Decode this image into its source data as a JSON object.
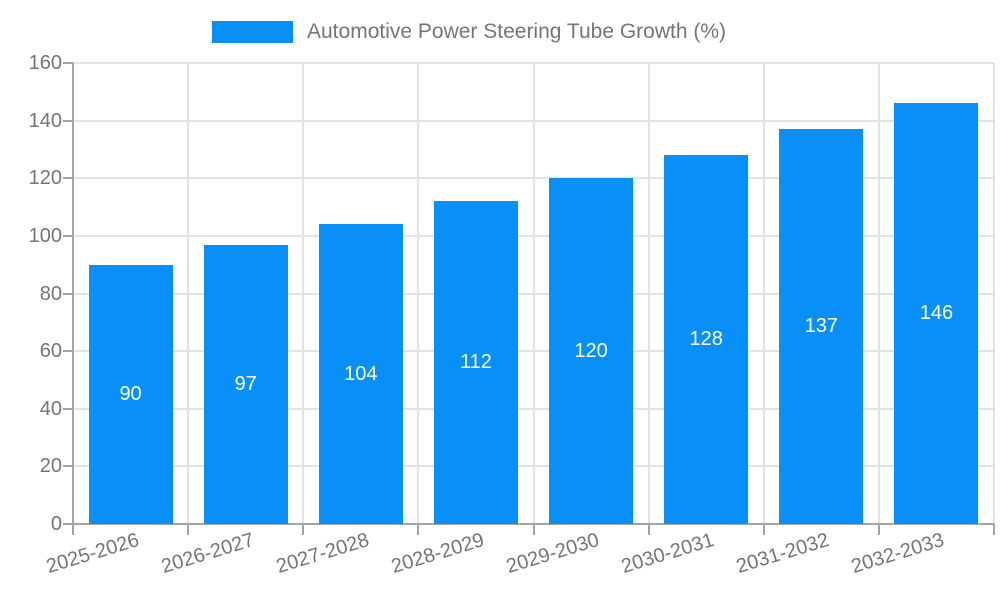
{
  "legend": {
    "label": "Automotive Power Steering Tube Growth (%)"
  },
  "chart_data": {
    "type": "bar",
    "title": "Automotive Power Steering Tube Growth (%)",
    "categories": [
      "2025-2026",
      "2026-2027",
      "2027-2028",
      "2028-2029",
      "2029-2030",
      "2030-2031",
      "2031-2032",
      "2032-2033"
    ],
    "values": [
      90,
      97,
      104,
      112,
      120,
      128,
      137,
      146
    ],
    "value_labels": [
      "90",
      "97",
      "104",
      "112",
      "120",
      "128",
      "137",
      "146"
    ],
    "ytick_labels": [
      "0",
      "20",
      "40",
      "60",
      "80",
      "100",
      "120",
      "140",
      "160"
    ],
    "yticks": [
      0,
      20,
      40,
      60,
      80,
      100,
      120,
      140,
      160
    ],
    "ylim": [
      0,
      160
    ],
    "xlabel": "",
    "ylabel": "",
    "grid": true,
    "legend_position": "top",
    "colors": {
      "bar": "#0890f8",
      "value_label": "#ffffff",
      "axis_label": "#757575",
      "grid_line": "#e3e3e3",
      "axis_line": "#a3a3a3",
      "background": "#ffffff"
    }
  }
}
